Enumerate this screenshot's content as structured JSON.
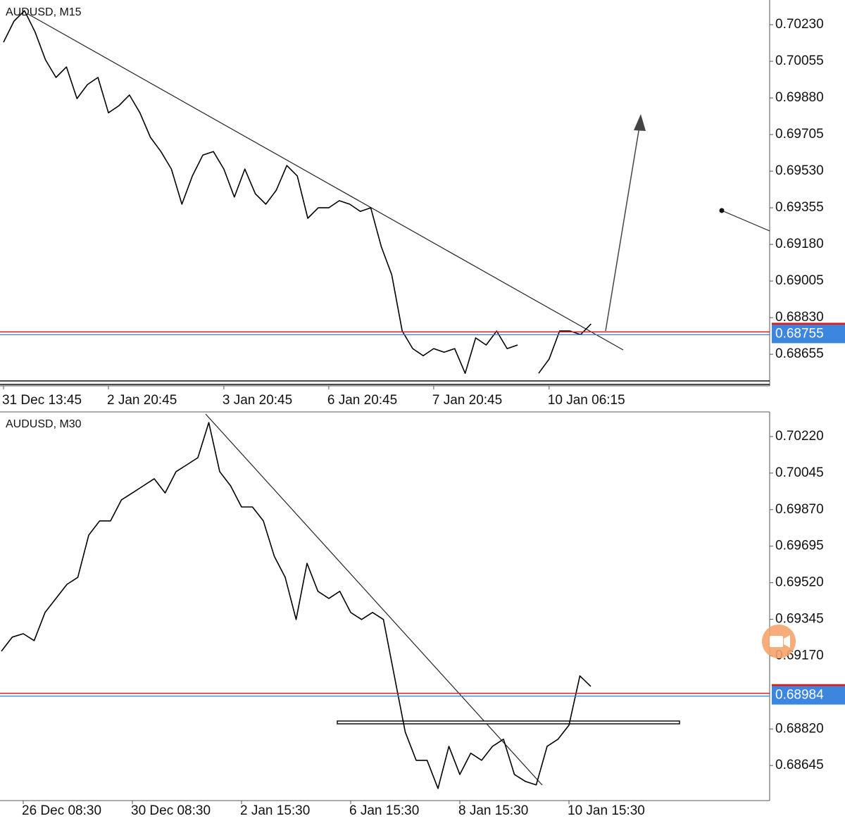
{
  "chart_data": [
    {
      "type": "line",
      "title": "AUDUSD, M15",
      "color": "#000000",
      "categories": [
        "31 Dec 13:45",
        null,
        null,
        null,
        null,
        null,
        null,
        null,
        null,
        null,
        "2 Jan 20:45",
        null,
        null,
        null,
        null,
        null,
        null,
        null,
        null,
        null,
        null,
        "3 Jan 20:45",
        null,
        null,
        null,
        null,
        null,
        null,
        null,
        null,
        null,
        "6 Jan 20:45",
        null,
        null,
        null,
        null,
        null,
        null,
        null,
        null,
        null,
        "7 Jan 20:45",
        null,
        null,
        null,
        null,
        null,
        null,
        null,
        null,
        null,
        null,
        "10 Jan 06:15",
        null,
        null,
        null,
        null
      ],
      "values": [
        0.70146,
        0.70247,
        0.70297,
        0.70196,
        0.70062,
        0.69978,
        0.70028,
        0.69877,
        0.69944,
        0.69978,
        0.69809,
        0.69843,
        0.69894,
        0.69809,
        0.69692,
        0.69624,
        0.6954,
        0.69372,
        0.69507,
        0.69607,
        0.69624,
        0.6954,
        0.69406,
        0.6954,
        0.69422,
        0.69372,
        0.69439,
        0.69557,
        0.69507,
        0.69305,
        0.69355,
        0.69355,
        0.69389,
        0.69372,
        0.69338,
        0.69355,
        0.6917,
        0.69035,
        0.68766,
        0.68682,
        0.68648,
        0.68682,
        0.68665,
        0.68682,
        0.68564,
        0.68733,
        0.68699,
        0.68766,
        0.68682,
        0.68699,
        null,
        0.68564,
        0.68632,
        0.68766,
        0.68766,
        0.68749,
        0.688
      ],
      "ylim": [
        0.68504,
        0.70348
      ],
      "yticks": [
        {
          "value": 0.7023,
          "label": "0.70230"
        },
        0.70055,
        {
          "value": 0.6988,
          "label": "0.69880"
        },
        0.69705,
        {
          "value": 0.6953,
          "label": "0.69530"
        },
        0.69355,
        {
          "value": 0.6918,
          "label": "0.69180"
        },
        0.69005,
        {
          "value": 0.6883,
          "label": "0.68830"
        },
        0.68655
      ],
      "current_price": 0.68755
    },
    {
      "type": "line",
      "title": "AUDUSD, M30",
      "color": "#000000",
      "categories": [
        null,
        null,
        "26 Dec 08:30",
        null,
        null,
        null,
        null,
        null,
        null,
        null,
        null,
        null,
        "30 Dec 08:30",
        null,
        null,
        null,
        null,
        null,
        null,
        null,
        null,
        null,
        "2 Jan 15:30",
        null,
        null,
        null,
        null,
        null,
        null,
        null,
        null,
        null,
        "6 Jan 15:30",
        null,
        null,
        null,
        null,
        null,
        null,
        null,
        null,
        null,
        "8 Jan 15:30",
        null,
        null,
        null,
        null,
        null,
        null,
        null,
        null,
        null,
        "10 Jan 15:30",
        null,
        null
      ],
      "values": [
        0.69192,
        0.6926,
        0.69276,
        0.69243,
        0.69378,
        0.69445,
        0.69512,
        0.69546,
        0.69748,
        0.69816,
        0.69816,
        0.69917,
        0.6995,
        0.69984,
        0.70018,
        0.6995,
        0.70052,
        0.70085,
        0.70119,
        0.70287,
        0.70052,
        0.69984,
        0.69883,
        0.69883,
        0.69816,
        0.69647,
        0.69546,
        0.69344,
        0.69613,
        0.69479,
        0.69445,
        0.69479,
        0.69378,
        0.69344,
        0.69378,
        0.69344,
        0.69074,
        0.68805,
        0.6867,
        0.6867,
        0.68535,
        0.68737,
        0.68602,
        0.68704,
        0.6867,
        0.68737,
        0.68771,
        0.68602,
        0.68569,
        0.68552,
        0.68737,
        0.68771,
        0.68838,
        0.69074,
        0.69024
      ],
      "ylim": [
        0.68477,
        0.70338
      ],
      "yticks": [
        {
          "value": 0.7022,
          "label": "0.70220"
        },
        0.70045,
        {
          "value": 0.6987,
          "label": "0.69870"
        },
        0.69695,
        {
          "value": 0.6952,
          "label": "0.69520"
        },
        0.69345,
        {
          "value": 0.6917,
          "label": "0.69170"
        },
        {
          "value": 0.6882,
          "label": "0.68820"
        },
        0.68645
      ],
      "current_price": 0.68984
    }
  ]
}
